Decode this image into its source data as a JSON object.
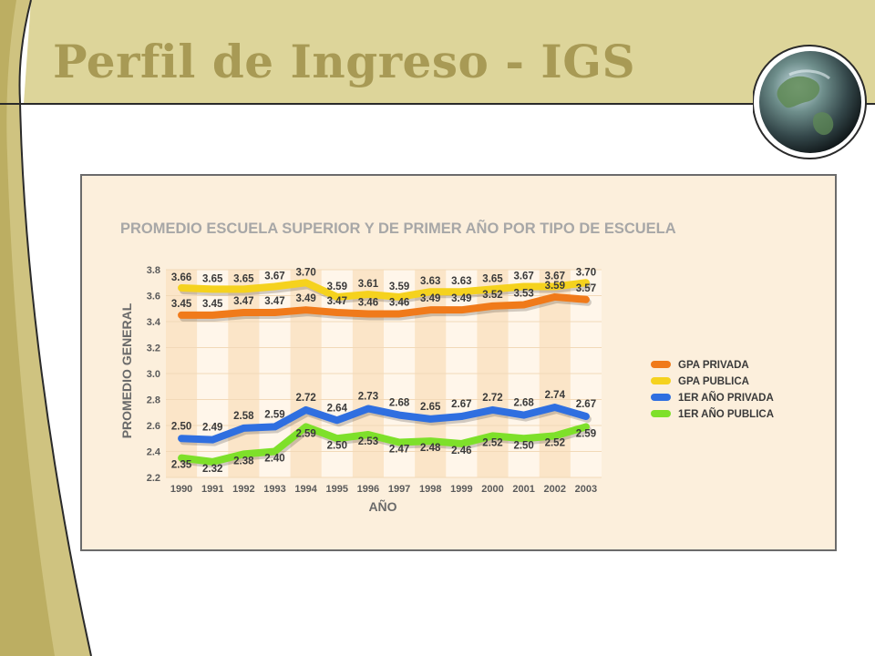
{
  "slide": {
    "title": "Perfil de Ingreso - IGS",
    "colors": {
      "title": "#a89a55",
      "band": "#ddd59a",
      "line": "#2a2a2a"
    },
    "decor_icon": "globe-icon"
  },
  "chart_data": {
    "type": "line",
    "title": "PROMEDIO ESCUELA SUPERIOR Y DE PRIMER AÑO POR TIPO DE ESCUELA",
    "xlabel": "AÑO",
    "ylabel": "PROMEDIO GENERAL",
    "ylim": [
      2.2,
      3.8
    ],
    "yticks": [
      "2.2",
      "2.4",
      "2.6",
      "2.8",
      "3.0",
      "3.2",
      "3.4",
      "3.6",
      "3.8"
    ],
    "categories": [
      "1990",
      "1991",
      "1992",
      "1993",
      "1994",
      "1995",
      "1996",
      "1997",
      "1998",
      "1999",
      "2000",
      "2001",
      "2002",
      "2003"
    ],
    "legend_position": "right",
    "series": [
      {
        "name": "GPA PRIVADA",
        "color": "#f07a1a",
        "values": [
          3.45,
          3.45,
          3.47,
          3.47,
          3.49,
          3.47,
          3.46,
          3.46,
          3.49,
          3.49,
          3.52,
          3.53,
          3.59,
          3.57
        ],
        "labels": [
          "3.45",
          "3.45",
          "3.47",
          "3.47",
          "3.49",
          "3.47",
          "3.46",
          "3.46",
          "3.49",
          "3.49",
          "3.52",
          "3.53",
          "3.59",
          "3.57"
        ]
      },
      {
        "name": "GPA PUBLICA",
        "color": "#f5d21e",
        "values": [
          3.66,
          3.65,
          3.65,
          3.67,
          3.7,
          3.59,
          3.61,
          3.59,
          3.63,
          3.63,
          3.65,
          3.67,
          3.67,
          3.7
        ],
        "labels": [
          "3.66",
          "3.65",
          "3.65",
          "3.67",
          "3.70",
          "3.59",
          "3.61",
          "3.59",
          "3.63",
          "3.63",
          "3.65",
          "3.67",
          "3.67",
          "3.70"
        ]
      },
      {
        "name": "1ER AÑO PRIVADA",
        "color": "#2f6fe0",
        "values": [
          2.5,
          2.49,
          2.58,
          2.59,
          2.72,
          2.64,
          2.73,
          2.68,
          2.65,
          2.67,
          2.72,
          2.68,
          2.74,
          2.67
        ],
        "labels": [
          "2.50",
          "2.49",
          "2.58",
          "2.59",
          "2.72",
          "2.64",
          "2.73",
          "2.68",
          "2.65",
          "2.67",
          "2.72",
          "2.68",
          "2.74",
          "2.67"
        ]
      },
      {
        "name": "1ER AÑO PUBLICA",
        "color": "#7ee02a",
        "values": [
          2.35,
          2.32,
          2.38,
          2.4,
          2.59,
          2.5,
          2.53,
          2.47,
          2.48,
          2.46,
          2.52,
          2.5,
          2.52,
          2.59
        ],
        "labels": [
          "2.35",
          "2.32",
          "2.38",
          "2.40",
          "2.59",
          "2.50",
          "2.53",
          "2.47",
          "2.48",
          "2.46",
          "2.52",
          "2.50",
          "2.52",
          "2.59"
        ]
      }
    ]
  }
}
